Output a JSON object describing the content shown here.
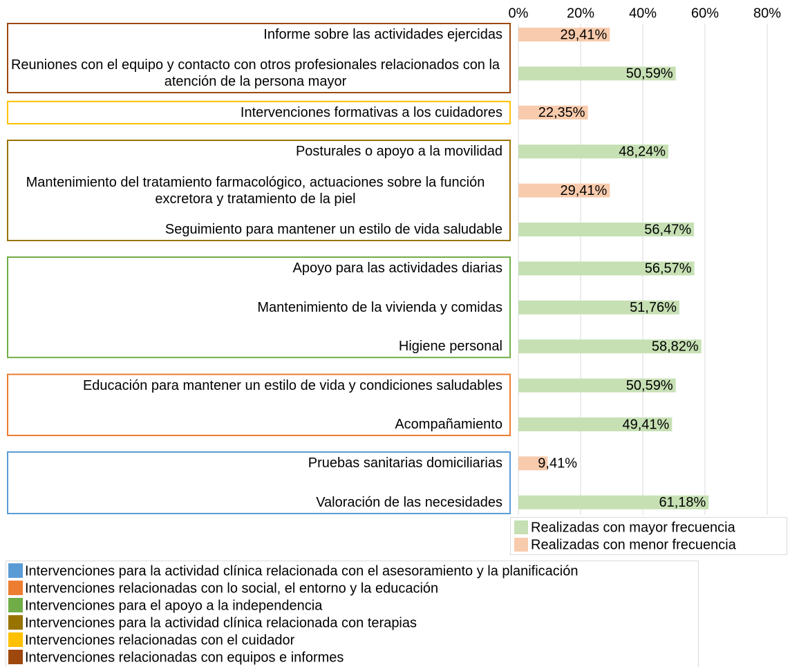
{
  "chart_data": {
    "type": "bar",
    "orientation": "horizontal",
    "categories": [
      "Informe sobre las actividades ejercidas",
      "Reuniones con el equipo y contacto con otros profesionales relacionados con la atención de la persona mayor",
      "Intervenciones formativas a los cuidadores",
      "Posturales o apoyo a la movilidad",
      "Mantenimiento del tratamiento farmacológico, actuaciones sobre la función excretora y tratamiento de la piel",
      "Seguimiento para mantener un estilo de vida saludable",
      "Apoyo para las actividades diarias",
      "Mantenimiento de la vivienda y comidas",
      "Higiene personal",
      "Educación para mantener un estilo de vida y condiciones saludables",
      "Acompañamiento",
      "Pruebas sanitarias domiciliarias",
      "Valoración de las necesidades"
    ],
    "series": [
      {
        "name": "Realizadas con mayor frecuencia",
        "color": "#c6e0b4",
        "values": [
          null,
          50.59,
          null,
          48.24,
          null,
          56.47,
          56.57,
          51.76,
          58.82,
          50.59,
          49.41,
          null,
          61.18
        ],
        "value_labels": [
          null,
          "50,59%",
          null,
          "48,24%",
          null,
          "56,47%",
          "56,57%",
          "51,76%",
          "58,82%",
          "50,59%",
          "49,41%",
          null,
          "61,18%"
        ]
      },
      {
        "name": "Realizadas con menor frecuencia",
        "color": "#f8cbad",
        "values": [
          29.41,
          null,
          22.35,
          null,
          29.41,
          null,
          null,
          null,
          null,
          null,
          null,
          9.41,
          null
        ],
        "value_labels": [
          "29,41%",
          null,
          "22,35%",
          null,
          "29,41%",
          null,
          null,
          null,
          null,
          null,
          null,
          "9,41%",
          null
        ]
      }
    ],
    "xlim": [
      0,
      80
    ],
    "xticks": [
      {
        "value": 0,
        "label": "0%"
      },
      {
        "value": 20,
        "label": "20%"
      },
      {
        "value": 40,
        "label": "40%"
      },
      {
        "value": 60,
        "label": "60%"
      },
      {
        "value": 80,
        "label": "80%"
      }
    ],
    "grid": true,
    "groups": [
      {
        "name": "Intervenciones para la actividad clínica relacionada con el asesoramiento y la planificación",
        "color": "#5b9bd5",
        "rows": [
          11,
          12
        ]
      },
      {
        "name": "Intervenciones relacionadas con lo social, el entorno y la educación",
        "color": "#ed7d31",
        "rows": [
          9,
          10
        ]
      },
      {
        "name": "Intervenciones para el apoyo a la independencia",
        "color": "#70ad47",
        "rows": [
          6,
          7,
          8
        ]
      },
      {
        "name": "Intervenciones para la actividad clínica relacionada con terapias",
        "color": "#997300",
        "rows": [
          3,
          4,
          5
        ]
      },
      {
        "name": "Intervenciones relacionadas con el cuidador",
        "color": "#ffc000",
        "rows": [
          2
        ]
      },
      {
        "name": "Intervenciones relacionadas con equipos e informes",
        "color": "#9e480e",
        "rows": [
          0,
          1
        ]
      }
    ]
  }
}
